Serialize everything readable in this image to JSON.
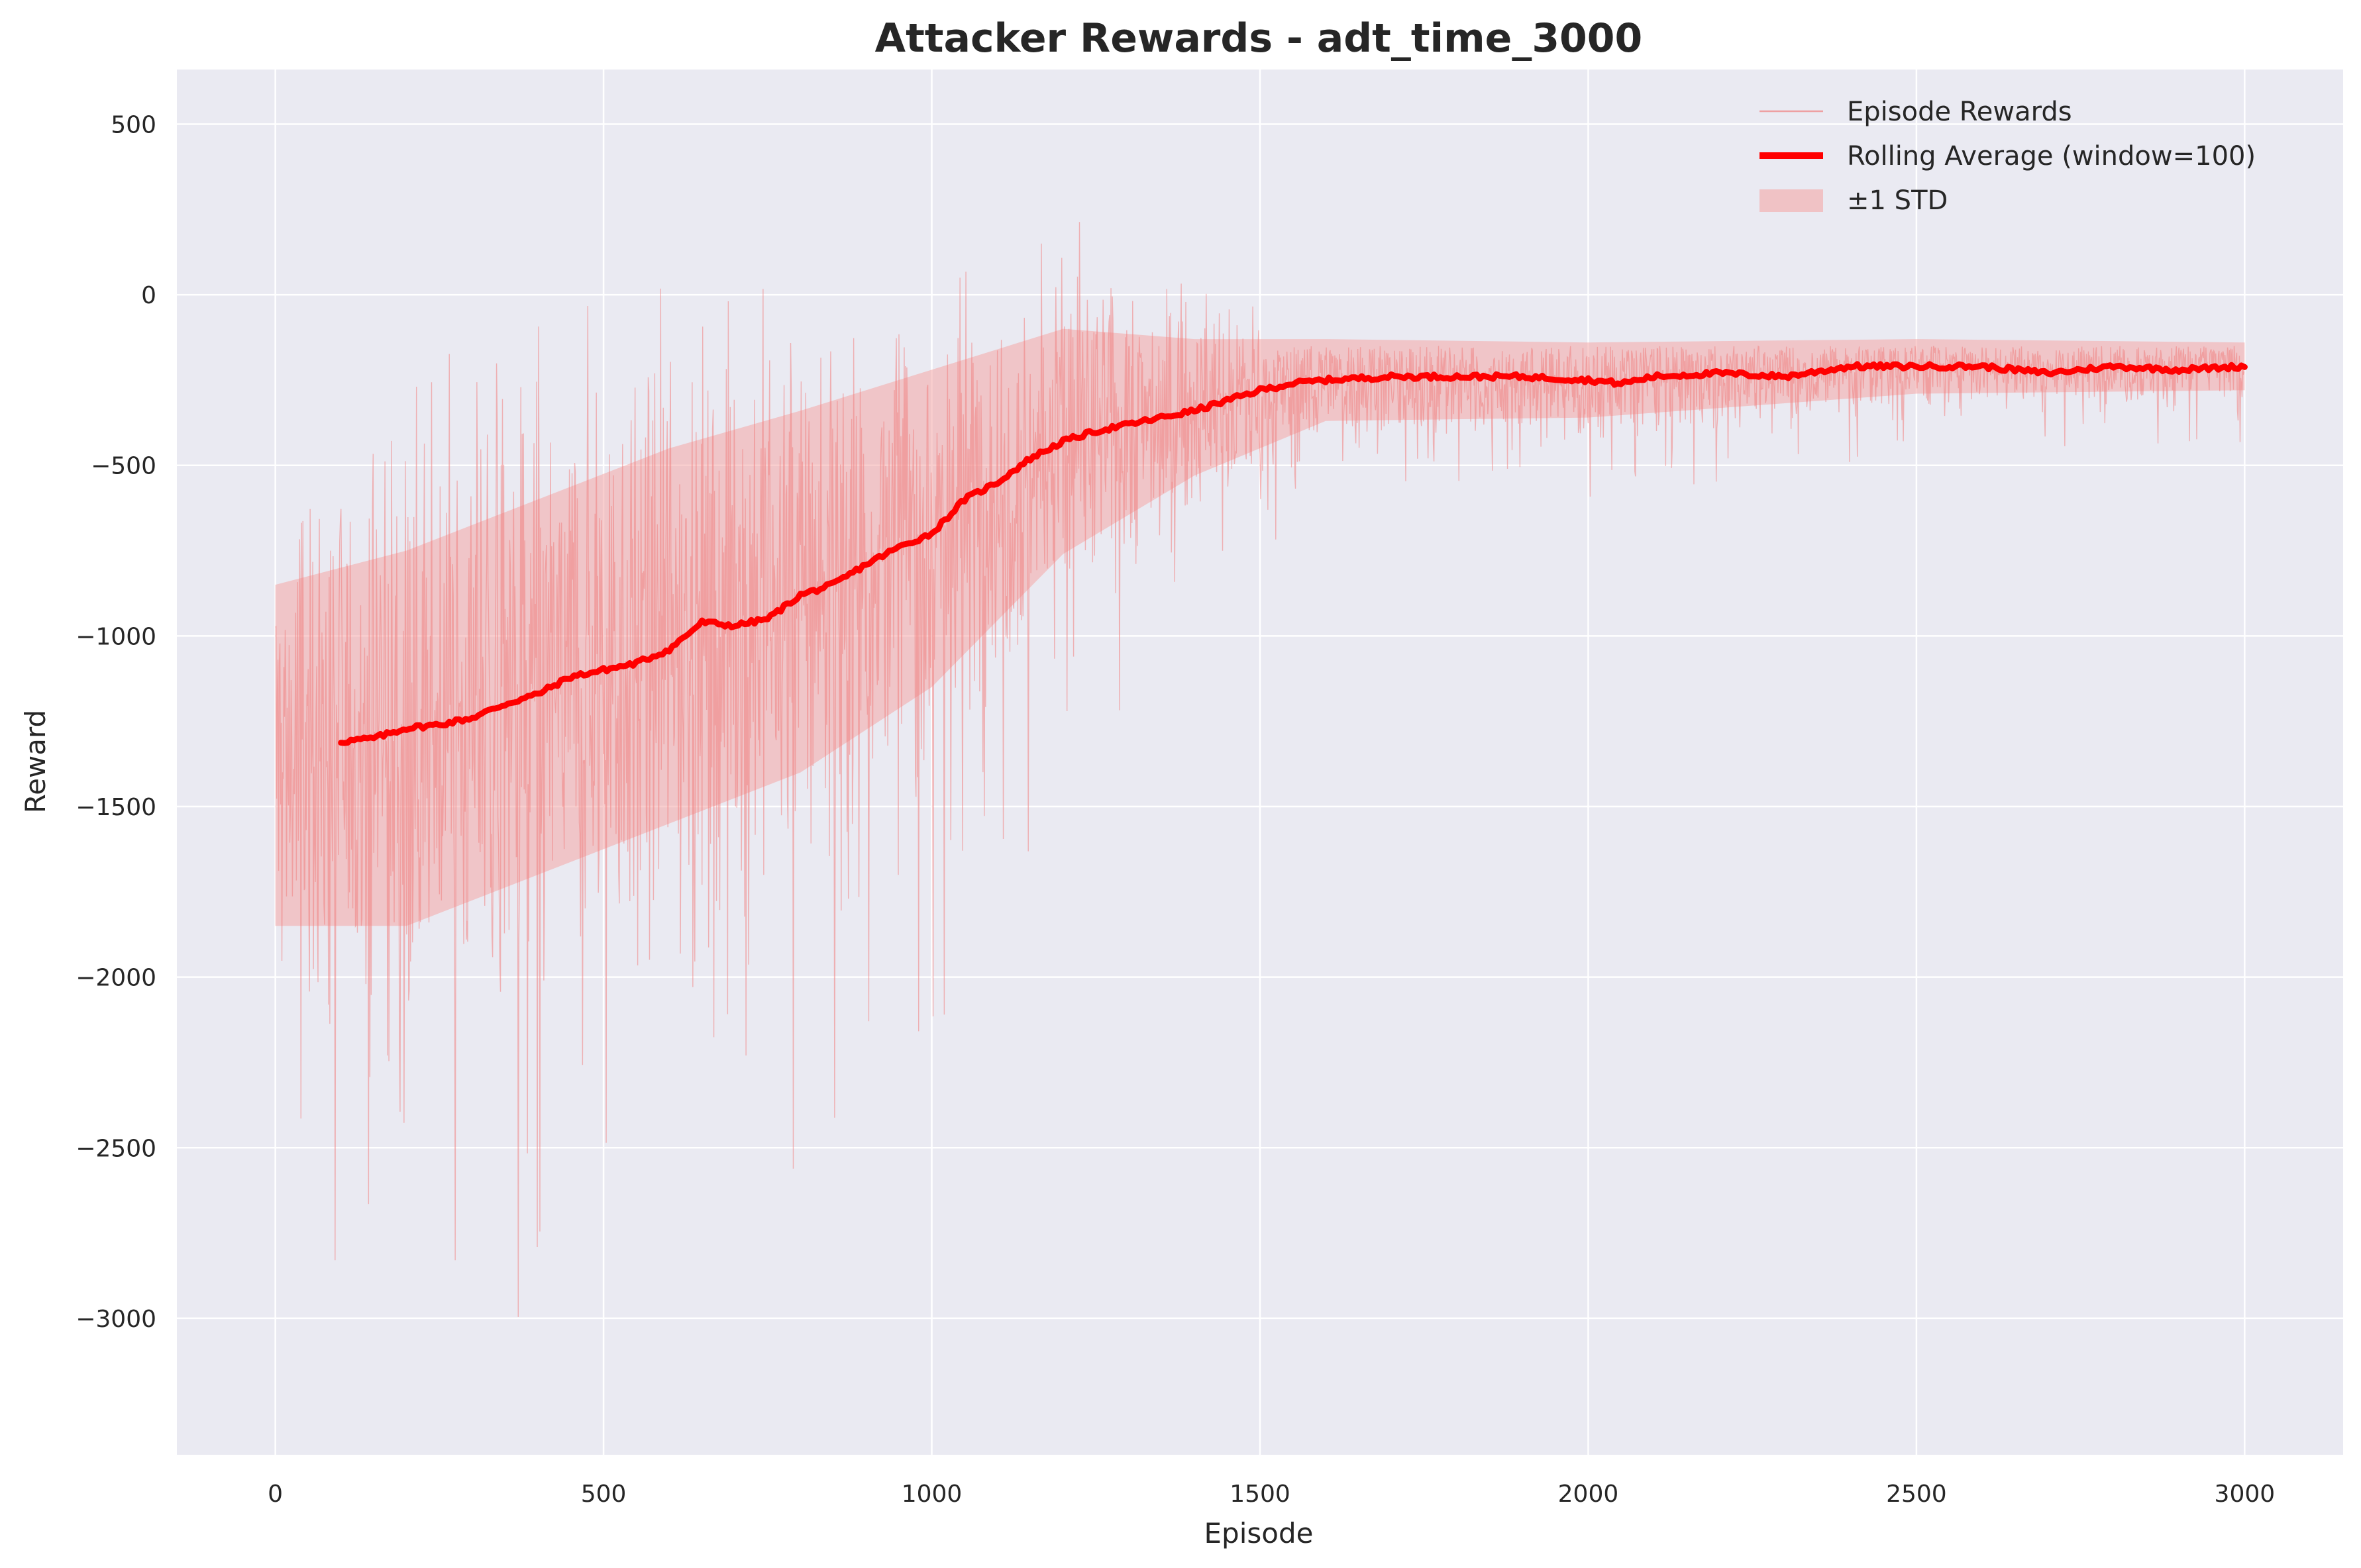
{
  "chart_data": {
    "type": "line",
    "title": "Attacker Rewards - adt_time_3000",
    "xlabel": "Episode",
    "ylabel": "Reward",
    "xlim": [
      -150,
      3150
    ],
    "ylim": [
      -3400,
      660
    ],
    "xticks": [
      0,
      500,
      1000,
      1500,
      2000,
      2500,
      3000
    ],
    "xtick_labels": [
      "0",
      "500",
      "1000",
      "1500",
      "2000",
      "2500",
      "3000"
    ],
    "yticks": [
      500,
      0,
      -500,
      -1000,
      -1500,
      -2000,
      -2500,
      -3000
    ],
    "ytick_labels": [
      "500",
      "0",
      "−500",
      "−1000",
      "−1500",
      "−2000",
      "−2500",
      "−3000"
    ],
    "grid": true,
    "legend_position": "upper right",
    "legend": [
      {
        "label": "Episode Rewards",
        "kind": "line",
        "color": "#f08080"
      },
      {
        "label": "Rolling Average (window=100)",
        "kind": "line",
        "color": "#ff0000"
      },
      {
        "label": "±1 STD",
        "kind": "patch",
        "color": "#f4a6a6"
      }
    ],
    "episode_rewards": {
      "name": "Episode Rewards",
      "episodes": 3000,
      "color": "#f08080",
      "trend_points": [
        {
          "x": 0,
          "mean": -1350,
          "spread": 500
        },
        {
          "x": 200,
          "mean": -1300,
          "spread": 560
        },
        {
          "x": 400,
          "mean": -1150,
          "spread": 580
        },
        {
          "x": 600,
          "mean": -1000,
          "spread": 560
        },
        {
          "x": 800,
          "mean": -870,
          "spread": 540
        },
        {
          "x": 1000,
          "mean": -690,
          "spread": 480
        },
        {
          "x": 1200,
          "mean": -430,
          "spread": 330
        },
        {
          "x": 1400,
          "mean": -330,
          "spread": 200
        },
        {
          "x": 1600,
          "mean": -250,
          "spread": 120
        },
        {
          "x": 2000,
          "mean": -250,
          "spread": 110
        },
        {
          "x": 2500,
          "mean": -210,
          "spread": 80
        },
        {
          "x": 3000,
          "mean": -210,
          "spread": 70
        }
      ],
      "min": -3230,
      "max": 440
    },
    "rolling_average": {
      "name": "Rolling Average (window=100)",
      "color": "#ff0000",
      "x": [
        100,
        150,
        200,
        250,
        300,
        350,
        400,
        450,
        500,
        550,
        600,
        650,
        700,
        750,
        800,
        850,
        900,
        950,
        1000,
        1050,
        1100,
        1150,
        1200,
        1250,
        1300,
        1350,
        1400,
        1450,
        1500,
        1550,
        1600,
        1700,
        1800,
        1900,
        2000,
        2050,
        2100,
        2200,
        2300,
        2400,
        2500,
        2600,
        2700,
        2800,
        2900,
        3000
      ],
      "y": [
        -1310,
        -1300,
        -1270,
        -1260,
        -1240,
        -1200,
        -1170,
        -1120,
        -1100,
        -1080,
        -1040,
        -960,
        -970,
        -950,
        -880,
        -850,
        -790,
        -740,
        -700,
        -600,
        -550,
        -480,
        -430,
        -400,
        -380,
        -360,
        -340,
        -310,
        -280,
        -260,
        -250,
        -240,
        -240,
        -240,
        -250,
        -260,
        -240,
        -230,
        -240,
        -210,
        -210,
        -210,
        -230,
        -210,
        -220,
        -210
      ]
    },
    "std_band": {
      "name": "±1 STD",
      "color": "#f4a6a6",
      "x": [
        0,
        200,
        400,
        600,
        800,
        1000,
        1200,
        1400,
        1600,
        2000,
        2500,
        3000
      ],
      "lower": [
        -1850,
        -1850,
        -1700,
        -1550,
        -1400,
        -1150,
        -760,
        -530,
        -370,
        -360,
        -290,
        -280
      ],
      "upper": [
        -850,
        -750,
        -600,
        -450,
        -340,
        -220,
        -100,
        -130,
        -130,
        -140,
        -130,
        -140
      ]
    }
  }
}
